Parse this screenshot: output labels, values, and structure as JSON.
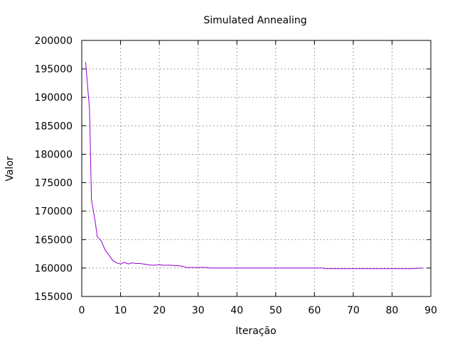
{
  "chart_data": {
    "type": "line",
    "title": "Simulated Annealing",
    "xlabel": "Iteração",
    "ylabel": "Valor",
    "xlim": [
      0,
      90
    ],
    "ylim": [
      155000,
      200000
    ],
    "x_ticks": [
      0,
      10,
      20,
      30,
      40,
      50,
      60,
      70,
      80,
      90
    ],
    "y_ticks": [
      155000,
      160000,
      165000,
      170000,
      175000,
      180000,
      185000,
      190000,
      195000,
      200000
    ],
    "grid": true,
    "legend": "none",
    "series": [
      {
        "color": "#9400d3",
        "x": [
          1,
          1.5,
          2,
          2.5,
          3,
          3.5,
          4,
          5,
          6,
          7,
          8,
          9,
          10,
          11,
          12,
          13,
          14,
          15,
          16,
          17,
          18,
          19,
          20,
          21,
          22,
          23,
          24,
          25,
          26,
          27,
          28,
          29,
          30,
          31,
          32,
          33,
          34,
          35,
          40,
          45,
          50,
          55,
          60,
          62,
          63,
          64,
          65,
          66,
          70,
          75,
          80,
          85,
          88
        ],
        "values": [
          196200,
          192000,
          188000,
          172000,
          170000,
          168000,
          165500,
          164800,
          163200,
          162300,
          161300,
          160900,
          160700,
          161000,
          160700,
          160900,
          160800,
          160800,
          160700,
          160600,
          160500,
          160500,
          160600,
          160500,
          160500,
          160500,
          160400,
          160400,
          160300,
          160100,
          160100,
          160100,
          160100,
          160100,
          160100,
          160000,
          160000,
          160000,
          160000,
          160000,
          160000,
          160000,
          160000,
          160000,
          159900,
          159900,
          159900,
          159900,
          159900,
          159900,
          159900,
          159900,
          160000
        ]
      }
    ]
  }
}
